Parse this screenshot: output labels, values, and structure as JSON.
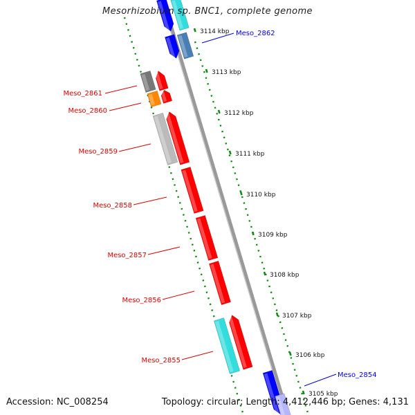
{
  "title": "Mesorhizobium sp. BNC1, complete genome",
  "footer": {
    "accession": "Accession: NC_008254",
    "summary": "Topology: circular; Length: 4,412,446 bp; Genes: 4,131"
  },
  "colors": {
    "forward_label": "#dd0000",
    "reverse_label": "#0000dd",
    "tick": "#138a13",
    "backbone": "#888888",
    "gene_red": "#ff0000",
    "gene_blue": "#0000ff",
    "gene_cyan": "#33dddd",
    "gene_steel": "#4a7fb5",
    "gene_gray": "#bbbbbb",
    "gene_darkgray": "#777777",
    "gene_orange": "#ff8800"
  },
  "kbp_ticks": [
    "3114 kbp",
    "3113 kbp",
    "3112 kbp",
    "3111 kbp",
    "3110 kbp",
    "3109 kbp",
    "3108 kbp",
    "3107 kbp",
    "3106 kbp",
    "3105 kbp"
  ],
  "gene_labels": [
    {
      "text": "Meso_2862",
      "color": "blue"
    },
    {
      "text": "Meso_2861",
      "color": "red"
    },
    {
      "text": "Meso_2860",
      "color": "red"
    },
    {
      "text": "Meso_2859",
      "color": "red"
    },
    {
      "text": "Meso_2858",
      "color": "red"
    },
    {
      "text": "Meso_2857",
      "color": "red"
    },
    {
      "text": "Meso_2856",
      "color": "red"
    },
    {
      "text": "Meso_2855",
      "color": "red"
    },
    {
      "text": "Meso_2854",
      "color": "blue"
    }
  ]
}
